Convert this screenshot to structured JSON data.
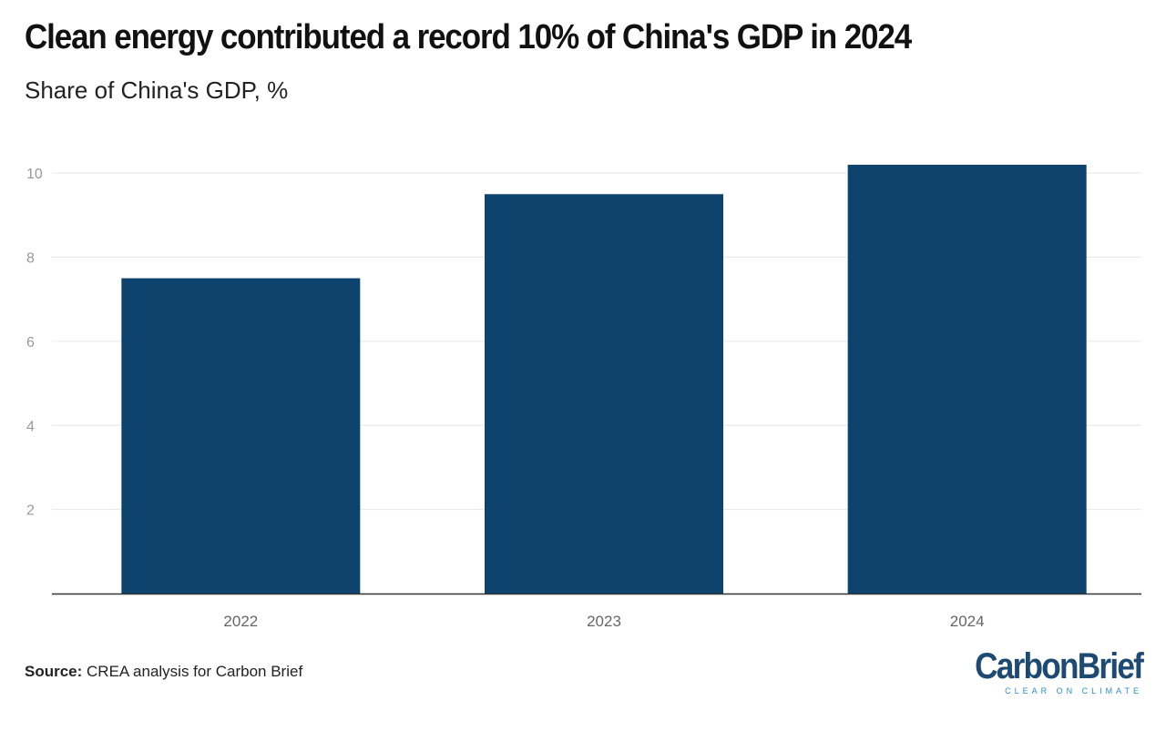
{
  "header": {
    "title": "Clean energy contributed a record 10% of China's GDP in 2024",
    "subtitle": "Share of China's GDP, %"
  },
  "footer": {
    "source_label": "Source:",
    "source_text": " CREA analysis for Carbon Brief",
    "logo_word_1": "Carbon",
    "logo_word_2": "Brief",
    "logo_tagline": "CLEAR ON CLIMATE"
  },
  "colors": {
    "bar": "#0d436d",
    "gridline": "#e6e6e6",
    "axis": "#333333",
    "logo_primary": "#1d4a72",
    "logo_accent": "#2a8fc8"
  },
  "chart_data": {
    "type": "bar",
    "title": "Clean energy contributed a record 10% of China's GDP in 2024",
    "subtitle": "Share of China's GDP, %",
    "xlabel": "",
    "ylabel": "",
    "categories": [
      "2022",
      "2023",
      "2024"
    ],
    "values": [
      7.5,
      9.5,
      10.2
    ],
    "ylim": [
      0,
      11
    ],
    "yticks": [
      2,
      4,
      6,
      8,
      10
    ],
    "grid": true,
    "legend": "none"
  }
}
